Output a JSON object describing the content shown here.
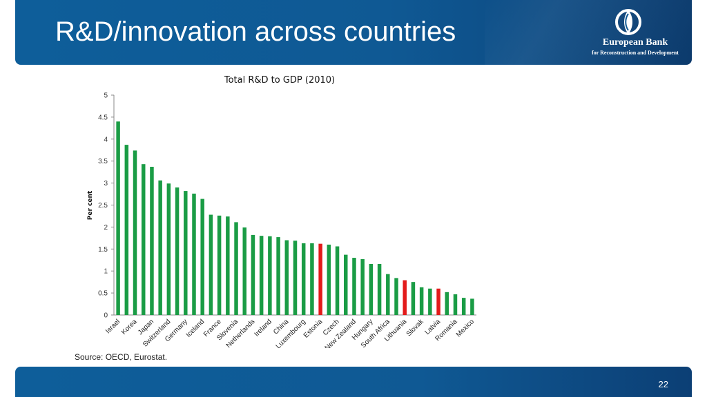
{
  "slide": {
    "title": "R&D/innovation across countries",
    "source": "Source: OECD, Eurostat.",
    "page_number": "22"
  },
  "logo": {
    "name": "European Bank",
    "subtitle": "for Reconstruction and Development",
    "icon": "ebrd-logo-icon"
  },
  "colors": {
    "header": "#0f5994",
    "bar_default": "#1a9c45",
    "bar_highlight": "#e31b1b"
  },
  "chart_data": {
    "type": "bar",
    "title": "Total R&D to GDP (2010)",
    "xlabel": "",
    "ylabel": "Per cent",
    "ylim": [
      0,
      5
    ],
    "yticks": [
      "0",
      "0.5",
      "1",
      "1.5",
      "2",
      "2.5",
      "3",
      "3.5",
      "4",
      "4.5",
      "5"
    ],
    "grid": false,
    "categories": [
      "Israel",
      "",
      "Korea",
      "",
      "Japan",
      "",
      "Switzerland",
      "",
      "Germany",
      "",
      "Iceland",
      "",
      "France",
      "",
      "Slovenia",
      "",
      "Netherlands",
      "",
      "Ireland",
      "",
      "China",
      "",
      "Luxembourg",
      "",
      "Estonia",
      "",
      "Czech",
      "",
      "New Zealand",
      "",
      "Hungary",
      "",
      "South Africa",
      "",
      "Lithuania",
      "",
      "Slovak",
      "",
      "Latvia",
      "",
      "Romania",
      "",
      "Mexico"
    ],
    "values": [
      4.4,
      3.87,
      3.74,
      3.43,
      3.37,
      3.06,
      2.99,
      2.9,
      2.82,
      2.76,
      2.64,
      2.28,
      2.26,
      2.24,
      2.11,
      1.99,
      1.82,
      1.8,
      1.79,
      1.77,
      1.7,
      1.69,
      1.63,
      1.63,
      1.62,
      1.6,
      1.56,
      1.37,
      1.3,
      1.27,
      1.16,
      1.16,
      0.93,
      0.84,
      0.79,
      0.75,
      0.63,
      0.6,
      0.6,
      0.52,
      0.47,
      0.39,
      0.37
    ],
    "highlighted": [
      24,
      34,
      38
    ]
  }
}
